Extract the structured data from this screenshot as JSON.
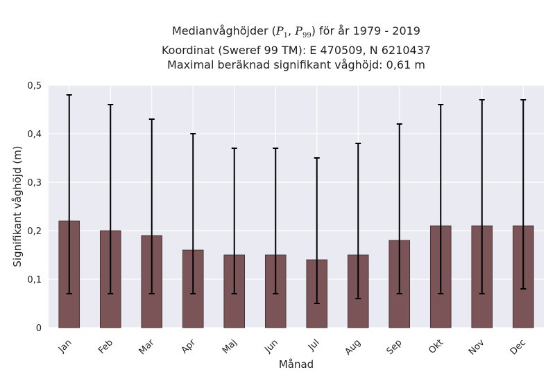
{
  "chart_data": {
    "type": "bar",
    "title_line1_prefix": "Medianvåghöjder (",
    "title_p1_main": "P",
    "title_p1_sub": "1",
    "title_separator": ", ",
    "title_p99_main": "P",
    "title_p99_sub": "99",
    "title_line1_suffix": ") för år 1979 - 2019",
    "title_line2": "Koordinat (Sweref 99 TM): E 470509, N 6210437",
    "title_line3": "Maximal beräknad signifikant våghöjd: 0,61 m",
    "xlabel": "Månad",
    "ylabel": "Signifikant våghöjd (m)",
    "ylim": [
      0,
      0.5
    ],
    "yticks": [
      "0",
      "0,1",
      "0,2",
      "0,3",
      "0,4",
      "0,5"
    ],
    "categories": [
      "Jan",
      "Feb",
      "Mar",
      "Apr",
      "Maj",
      "Jun",
      "Jul",
      "Aug",
      "Sep",
      "Okt",
      "Nov",
      "Dec"
    ],
    "values": [
      0.22,
      0.2,
      0.19,
      0.16,
      0.15,
      0.15,
      0.14,
      0.15,
      0.18,
      0.21,
      0.21,
      0.21
    ],
    "error_low": [
      0.07,
      0.07,
      0.07,
      0.07,
      0.07,
      0.07,
      0.05,
      0.06,
      0.07,
      0.07,
      0.07,
      0.08
    ],
    "error_high": [
      0.48,
      0.46,
      0.43,
      0.4,
      0.37,
      0.37,
      0.35,
      0.38,
      0.42,
      0.46,
      0.47,
      0.47
    ],
    "grid": true,
    "colors": {
      "bar": "#7a5457",
      "bar_edge": "#3a2a2b",
      "errorbar": "#000000",
      "background": "#eaeaf2",
      "grid": "#ffffff"
    }
  }
}
